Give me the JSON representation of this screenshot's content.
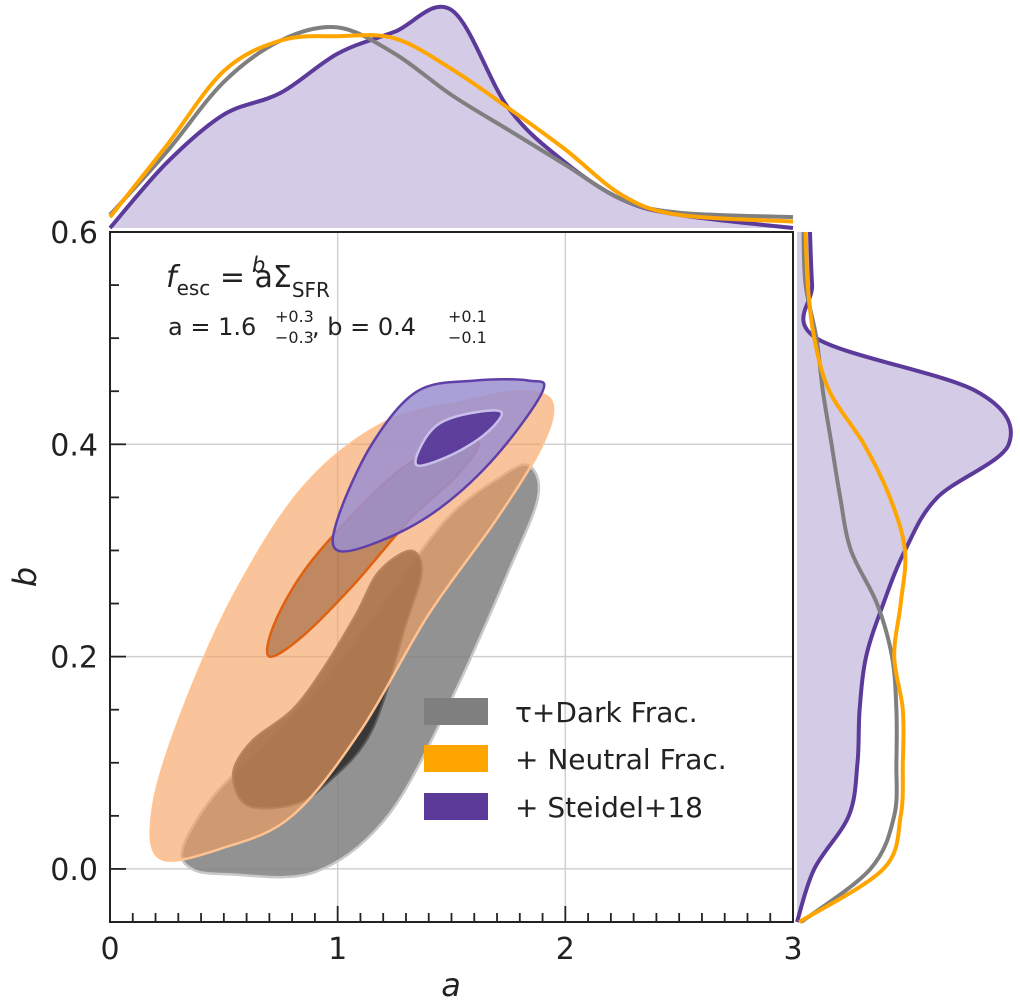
{
  "chart_data": {
    "type": "contour",
    "title": "",
    "xlabel": "a",
    "ylabel": "b",
    "xlim": [
      0,
      3
    ],
    "ylim": [
      -0.05,
      0.6
    ],
    "x_ticks": [
      0,
      1,
      2,
      3
    ],
    "x_tick_labels": [
      "0",
      "1",
      "2",
      "3"
    ],
    "y_ticks": [
      0.0,
      0.2,
      0.4,
      0.6
    ],
    "y_tick_labels": [
      "0.0",
      "0.2",
      "0.4",
      "0.6"
    ],
    "grid": true,
    "legend_position": "bottom-right",
    "annotation": {
      "formula_lhs": "f",
      "formula_lhs_sub": "esc",
      "formula_mid": " = aΣ",
      "formula_sub": "SFR",
      "formula_sup": "b",
      "fit_a_label": "a = 1.6",
      "fit_a_sup": "+0.3",
      "fit_a_sub": "−0.3",
      "fit_b_label": ", b = 0.4",
      "fit_b_sup": "+0.1",
      "fit_b_sub": "−0.1"
    },
    "series": [
      {
        "name": "τ+Dark Frac.",
        "color": "#7f7f7f",
        "inner_color": "#2f2f2f",
        "contour_95": [
          [
            0.52,
            -0.005
          ],
          [
            0.9,
            -0.003
          ],
          [
            1.22,
            0.05
          ],
          [
            1.5,
            0.16
          ],
          [
            1.75,
            0.28
          ],
          [
            1.88,
            0.35
          ],
          [
            1.84,
            0.38
          ],
          [
            1.72,
            0.37
          ],
          [
            1.48,
            0.33
          ],
          [
            1.2,
            0.25
          ],
          [
            0.95,
            0.18
          ],
          [
            0.7,
            0.12
          ],
          [
            0.46,
            0.07
          ],
          [
            0.32,
            0.02
          ],
          [
            0.36,
            0.0
          ]
        ],
        "contour_68": [
          [
            0.6,
            0.06
          ],
          [
            0.8,
            0.06
          ],
          [
            0.95,
            0.08
          ],
          [
            1.15,
            0.13
          ],
          [
            1.3,
            0.23
          ],
          [
            1.37,
            0.28
          ],
          [
            1.32,
            0.3
          ],
          [
            1.18,
            0.28
          ],
          [
            1.08,
            0.24
          ],
          [
            0.94,
            0.19
          ],
          [
            0.8,
            0.15
          ],
          [
            0.62,
            0.12
          ],
          [
            0.54,
            0.09
          ]
        ]
      },
      {
        "name": "+ Neutral Frac.",
        "color": "#ffa500",
        "fill_color": "#f5a060",
        "line_color": "#e06010",
        "contour_95": [
          [
            0.22,
            0.01
          ],
          [
            0.5,
            0.02
          ],
          [
            0.8,
            0.05
          ],
          [
            1.1,
            0.13
          ],
          [
            1.4,
            0.24
          ],
          [
            1.7,
            0.33
          ],
          [
            1.9,
            0.4
          ],
          [
            1.94,
            0.44
          ],
          [
            1.8,
            0.45
          ],
          [
            1.55,
            0.44
          ],
          [
            1.2,
            0.42
          ],
          [
            0.85,
            0.36
          ],
          [
            0.55,
            0.26
          ],
          [
            0.32,
            0.15
          ],
          [
            0.19,
            0.06
          ]
        ],
        "contour_68": [
          [
            0.7,
            0.2
          ],
          [
            0.85,
            0.22
          ],
          [
            1.08,
            0.27
          ],
          [
            1.32,
            0.33
          ],
          [
            1.52,
            0.37
          ],
          [
            1.62,
            0.4
          ],
          [
            1.52,
            0.4
          ],
          [
            1.3,
            0.38
          ],
          [
            1.05,
            0.33
          ],
          [
            0.85,
            0.28
          ],
          [
            0.72,
            0.23
          ]
        ]
      },
      {
        "name": "+ Steidel+18",
        "color": "#5b3a9a",
        "fill_color": "#9a8fd0",
        "line_color": "#6040a8",
        "contour_95": [
          [
            1.0,
            0.3
          ],
          [
            1.2,
            0.31
          ],
          [
            1.45,
            0.34
          ],
          [
            1.7,
            0.39
          ],
          [
            1.9,
            0.45
          ],
          [
            1.84,
            0.46
          ],
          [
            1.6,
            0.46
          ],
          [
            1.35,
            0.45
          ],
          [
            1.15,
            0.4
          ],
          [
            1.0,
            0.33
          ]
        ],
        "contour_68": [
          [
            1.35,
            0.38
          ],
          [
            1.5,
            0.39
          ],
          [
            1.65,
            0.41
          ],
          [
            1.72,
            0.43
          ],
          [
            1.6,
            0.43
          ],
          [
            1.45,
            0.42
          ],
          [
            1.37,
            0.4
          ]
        ]
      }
    ],
    "marginal_x": {
      "x": [
        0,
        0.25,
        0.5,
        0.75,
        1.0,
        1.25,
        1.5,
        1.75,
        2.0,
        2.25,
        2.5,
        3.0
      ],
      "tau_dark": [
        0.06,
        0.35,
        0.67,
        0.86,
        0.92,
        0.8,
        0.61,
        0.45,
        0.29,
        0.13,
        0.07,
        0.05
      ],
      "neutral": [
        0.05,
        0.38,
        0.72,
        0.86,
        0.88,
        0.87,
        0.73,
        0.55,
        0.36,
        0.15,
        0.06,
        0.03
      ],
      "steidel": [
        0.0,
        0.3,
        0.52,
        0.62,
        0.8,
        0.9,
        1.0,
        0.55,
        0.3,
        0.13,
        0.06,
        0.0
      ]
    },
    "marginal_y": {
      "y": [
        -0.05,
        0.0,
        0.05,
        0.1,
        0.15,
        0.2,
        0.25,
        0.3,
        0.35,
        0.4,
        0.45,
        0.5,
        0.55,
        0.6
      ],
      "tau_dark": [
        0.02,
        0.34,
        0.45,
        0.46,
        0.46,
        0.44,
        0.37,
        0.25,
        0.2,
        0.16,
        0.12,
        0.09,
        0.04,
        0.03
      ],
      "neutral": [
        0.01,
        0.4,
        0.48,
        0.49,
        0.49,
        0.45,
        0.48,
        0.5,
        0.43,
        0.31,
        0.15,
        0.08,
        0.05,
        0.04
      ],
      "steidel": [
        0.0,
        0.08,
        0.24,
        0.28,
        0.29,
        0.32,
        0.4,
        0.5,
        0.65,
        0.98,
        0.83,
        0.09,
        0.07,
        0.06
      ]
    }
  }
}
